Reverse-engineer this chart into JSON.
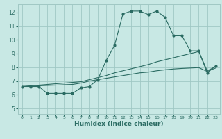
{
  "title": "",
  "xlabel": "Humidex (Indice chaleur)",
  "ylabel": "",
  "bg_color": "#c8e8e4",
  "grid_color": "#a0c8c4",
  "line_color": "#2a6b62",
  "x_ticks": [
    0,
    1,
    2,
    3,
    4,
    5,
    6,
    7,
    8,
    9,
    10,
    11,
    12,
    13,
    14,
    15,
    16,
    17,
    18,
    19,
    20,
    21,
    22,
    23
  ],
  "y_ticks": [
    5,
    6,
    7,
    8,
    9,
    10,
    11,
    12
  ],
  "xlim": [
    -0.5,
    23.5
  ],
  "ylim": [
    4.6,
    12.6
  ],
  "line1_x": [
    0,
    1,
    2,
    3,
    4,
    5,
    6,
    7,
    8,
    9,
    10,
    11,
    12,
    13,
    14,
    15,
    16,
    17,
    18,
    19,
    20,
    21,
    22,
    23
  ],
  "line1_y": [
    6.6,
    6.6,
    6.6,
    6.1,
    6.1,
    6.1,
    6.1,
    6.5,
    6.6,
    7.1,
    8.5,
    9.6,
    11.9,
    12.1,
    12.1,
    11.85,
    12.1,
    11.65,
    10.3,
    10.3,
    9.2,
    9.2,
    7.6,
    8.1
  ],
  "line2_x": [
    0,
    1,
    2,
    3,
    4,
    5,
    6,
    7,
    8,
    9,
    10,
    11,
    12,
    13,
    14,
    15,
    16,
    17,
    18,
    19,
    20,
    21,
    22,
    23
  ],
  "line2_y": [
    6.6,
    6.65,
    6.7,
    6.75,
    6.8,
    6.85,
    6.9,
    6.95,
    7.1,
    7.25,
    7.4,
    7.6,
    7.75,
    7.9,
    8.05,
    8.2,
    8.4,
    8.55,
    8.7,
    8.85,
    9.0,
    9.15,
    7.75,
    8.05
  ],
  "line3_x": [
    0,
    1,
    2,
    3,
    4,
    5,
    6,
    7,
    8,
    9,
    10,
    11,
    12,
    13,
    14,
    15,
    16,
    17,
    18,
    19,
    20,
    21,
    22,
    23
  ],
  "line3_y": [
    6.6,
    6.62,
    6.65,
    6.68,
    6.7,
    6.73,
    6.75,
    6.85,
    7.0,
    7.1,
    7.2,
    7.3,
    7.4,
    7.5,
    7.6,
    7.65,
    7.75,
    7.82,
    7.88,
    7.92,
    7.95,
    7.98,
    7.7,
    7.95
  ]
}
